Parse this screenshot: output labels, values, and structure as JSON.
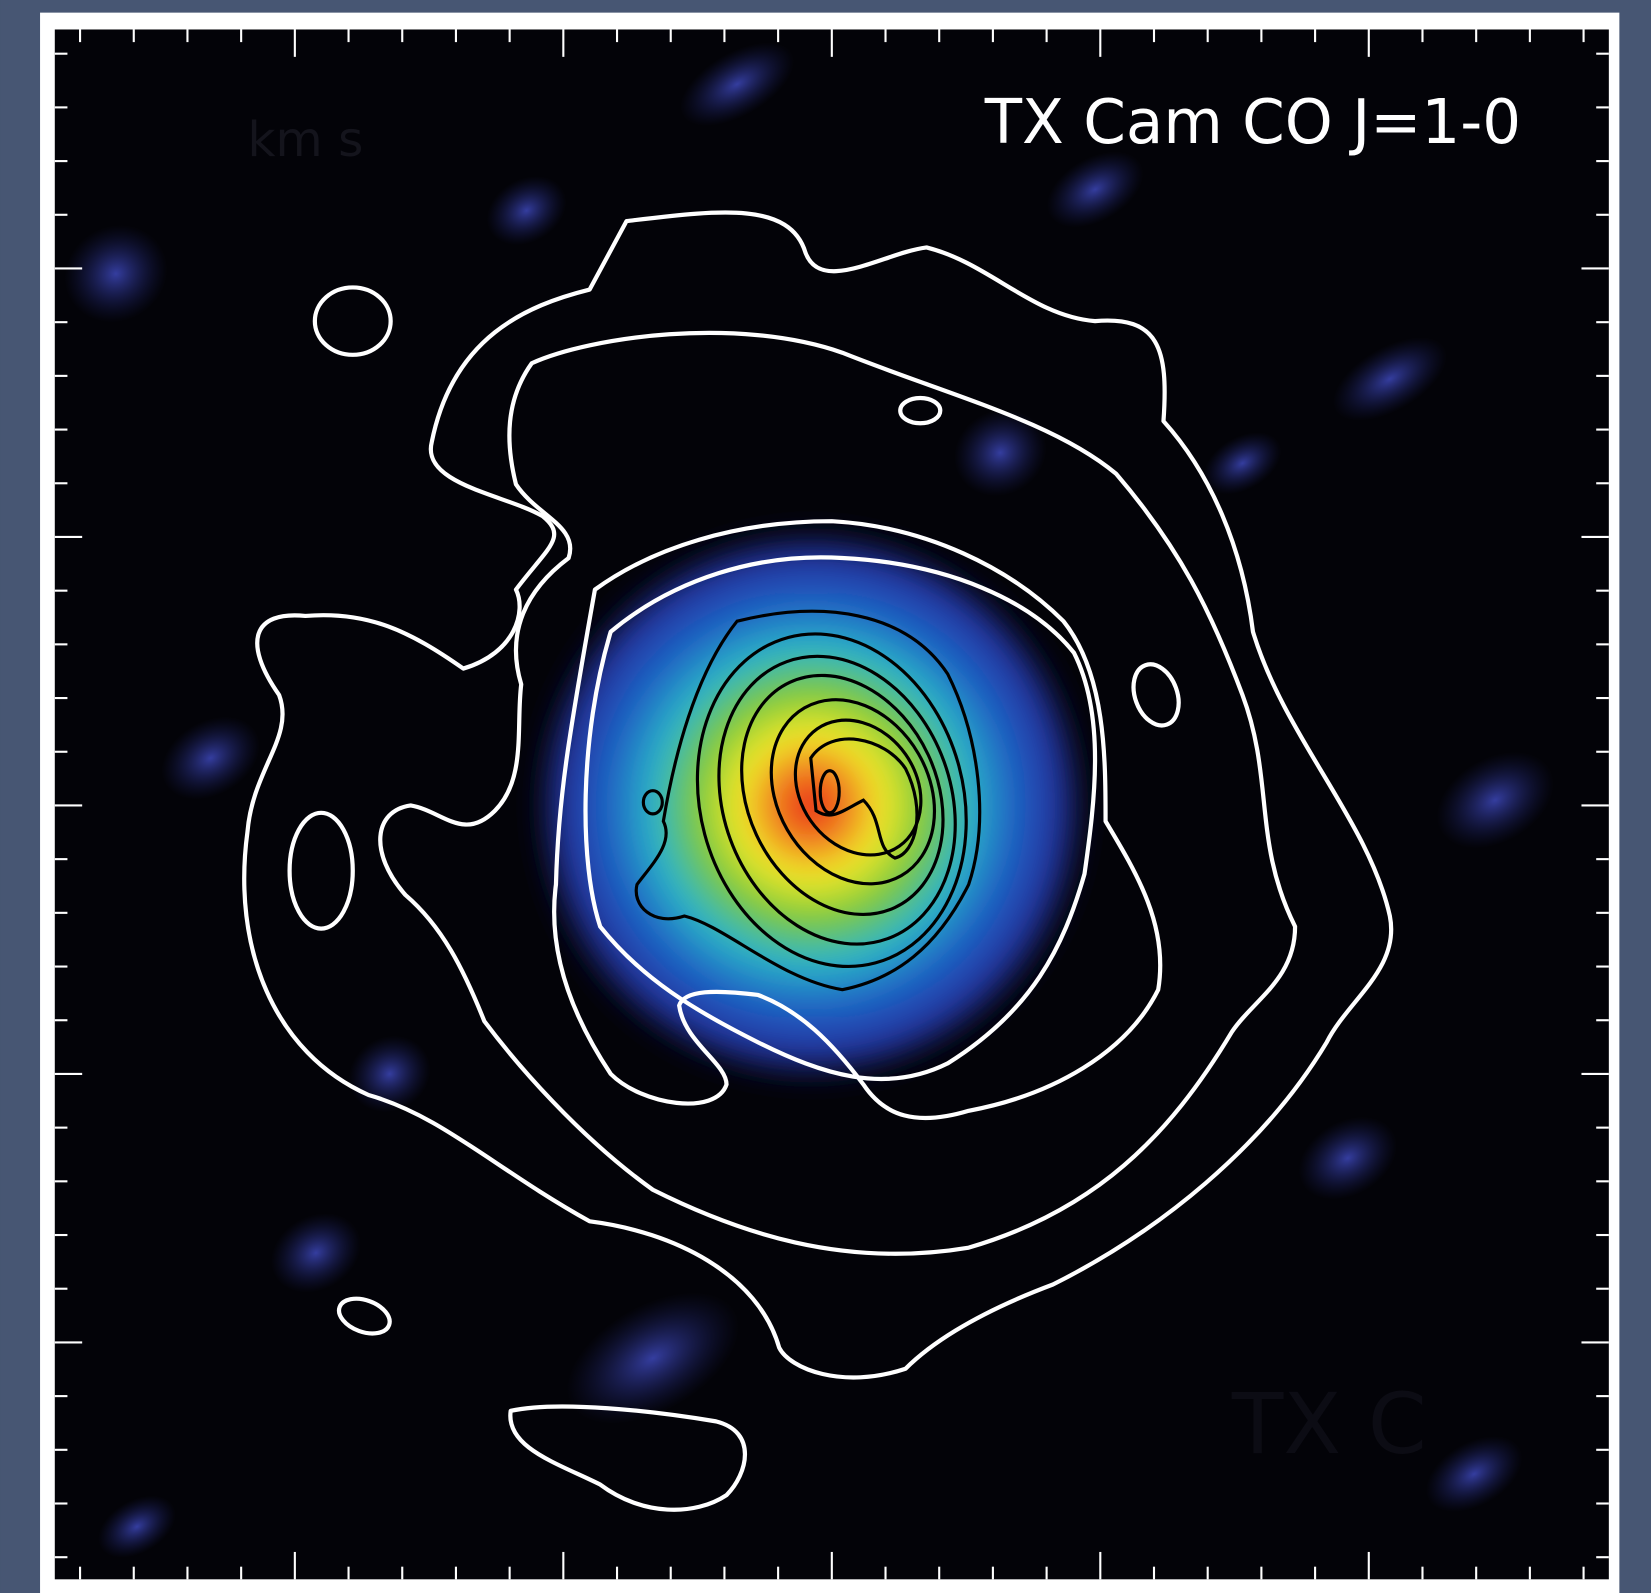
{
  "image": {
    "title": "TX Cam CO J=1-0",
    "faint_labels": [
      "km s",
      "TX C"
    ]
  }
}
